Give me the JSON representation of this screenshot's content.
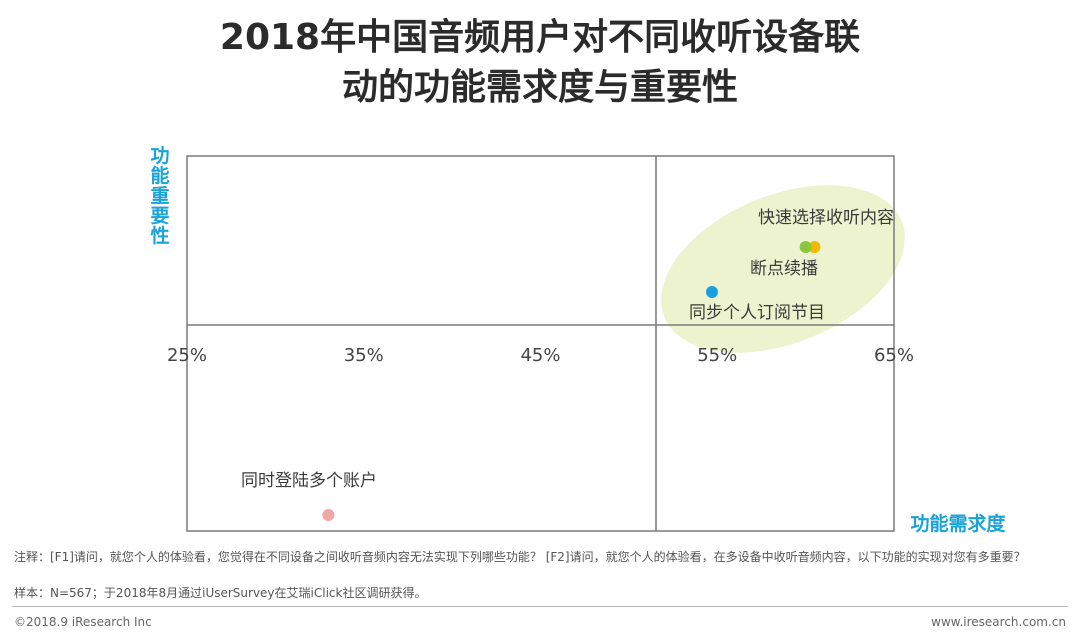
{
  "title_line1": "2018年中国音频用户对不同收听设备联",
  "title_line2": "动的功能需求度与重要性",
  "chart_data": {
    "type": "scatter",
    "xlabel": "功能需求度",
    "ylabel": "功能重要性",
    "x_ticks": [
      "25%",
      "35%",
      "45%",
      "55%",
      "65%"
    ],
    "xlim": [
      25,
      65
    ],
    "grid": false,
    "points": [
      {
        "label": "快速选择收听内容",
        "x": 60.5,
        "color": "#f5b800"
      },
      {
        "label": "断点续播",
        "x": 60.0,
        "color": "#8cc63e"
      },
      {
        "label": "同步个人订阅节目",
        "x": 54.7,
        "color": "#1a9ee0"
      },
      {
        "label": "同时登陆多个账户",
        "x": 33.0,
        "color": "#f2a7a7"
      }
    ],
    "highlight_color": "#eef3cf"
  },
  "note_line1": "注释：[F1]请问，就您个人的体验看，您觉得在不同设备之间收听音频内容无法实现下列哪些功能？ [F2]请问，就您个人的体验看，在多设备中收听音频内容，以下功能的实现对您有多重要？",
  "note_line2": "样本：N=567；于2018年8月通过iUserSurvey在艾瑞iClick社区调研获得。",
  "footer_left": "©2018.9 iResearch Inc",
  "footer_right": "www.iresearch.com.cn"
}
